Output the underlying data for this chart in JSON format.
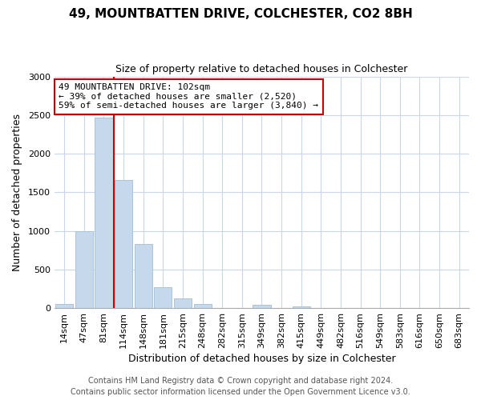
{
  "title": "49, MOUNTBATTEN DRIVE, COLCHESTER, CO2 8BH",
  "subtitle": "Size of property relative to detached houses in Colchester",
  "xlabel": "Distribution of detached houses by size in Colchester",
  "ylabel": "Number of detached properties",
  "bar_labels": [
    "14sqm",
    "47sqm",
    "81sqm",
    "114sqm",
    "148sqm",
    "181sqm",
    "215sqm",
    "248sqm",
    "282sqm",
    "315sqm",
    "349sqm",
    "382sqm",
    "415sqm",
    "449sqm",
    "482sqm",
    "516sqm",
    "549sqm",
    "583sqm",
    "616sqm",
    "650sqm",
    "683sqm"
  ],
  "bar_values": [
    50,
    1000,
    2470,
    1660,
    830,
    265,
    120,
    55,
    0,
    0,
    40,
    0,
    20,
    0,
    0,
    0,
    0,
    0,
    0,
    0,
    0
  ],
  "bar_color": "#c6d9ec",
  "bar_edge_color": "#aac4dc",
  "vline_x": 2.5,
  "vline_color": "#cc0000",
  "annotation_line1": "49 MOUNTBATTEN DRIVE: 102sqm",
  "annotation_line2": "← 39% of detached houses are smaller (2,520)",
  "annotation_line3": "59% of semi-detached houses are larger (3,840) →",
  "annotation_box_color": "#ffffff",
  "annotation_box_edge": "#cc0000",
  "ylim": [
    0,
    3000
  ],
  "yticks": [
    0,
    500,
    1000,
    1500,
    2000,
    2500,
    3000
  ],
  "footer_line1": "Contains HM Land Registry data © Crown copyright and database right 2024.",
  "footer_line2": "Contains public sector information licensed under the Open Government Licence v3.0.",
  "bg_color": "#ffffff",
  "grid_color": "#c8d8e8",
  "title_fontsize": 11,
  "subtitle_fontsize": 9,
  "axis_label_fontsize": 9,
  "tick_fontsize": 8,
  "annotation_fontsize": 8,
  "footer_fontsize": 7
}
